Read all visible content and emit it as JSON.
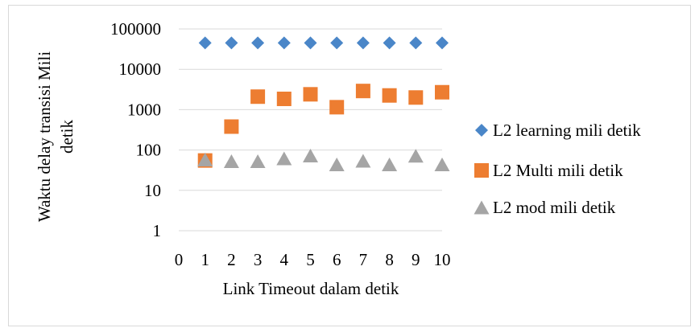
{
  "chart_data": {
    "type": "scatter",
    "title": "",
    "xlabel": "Link Timeout dalam detik",
    "ylabel": "Waktu delay transisi Mili detik",
    "ylabel_lines": [
      "Waktu delay transisi Mili",
      "detik"
    ],
    "xlim": [
      0,
      10
    ],
    "ylim": [
      1,
      100000
    ],
    "yscale": "log",
    "x_ticks": [
      "0",
      "1",
      "2",
      "3",
      "4",
      "5",
      "6",
      "7",
      "8",
      "9",
      "10"
    ],
    "y_ticks": [
      "1",
      "10",
      "100",
      "1000",
      "10000",
      "100000"
    ],
    "grid": true,
    "legend_position": "right",
    "x": [
      1,
      2,
      3,
      4,
      5,
      6,
      7,
      8,
      9,
      10
    ],
    "series": [
      {
        "name": "L2 learning mili detik",
        "marker": "diamond",
        "color": "#4a86c8",
        "values": [
          45000,
          45000,
          45000,
          45000,
          45000,
          45000,
          45000,
          45000,
          45000,
          45000
        ]
      },
      {
        "name": "L2 Multi mili detik",
        "marker": "square",
        "color": "#ed7d31",
        "values": [
          55,
          380,
          2100,
          1850,
          2400,
          1150,
          2900,
          2250,
          2000,
          2700
        ]
      },
      {
        "name": "L2 mod mili detik",
        "marker": "triangle",
        "color": "#a5a5a5",
        "values": [
          58,
          53,
          53,
          62,
          73,
          44,
          54,
          44,
          72,
          44
        ]
      }
    ]
  }
}
